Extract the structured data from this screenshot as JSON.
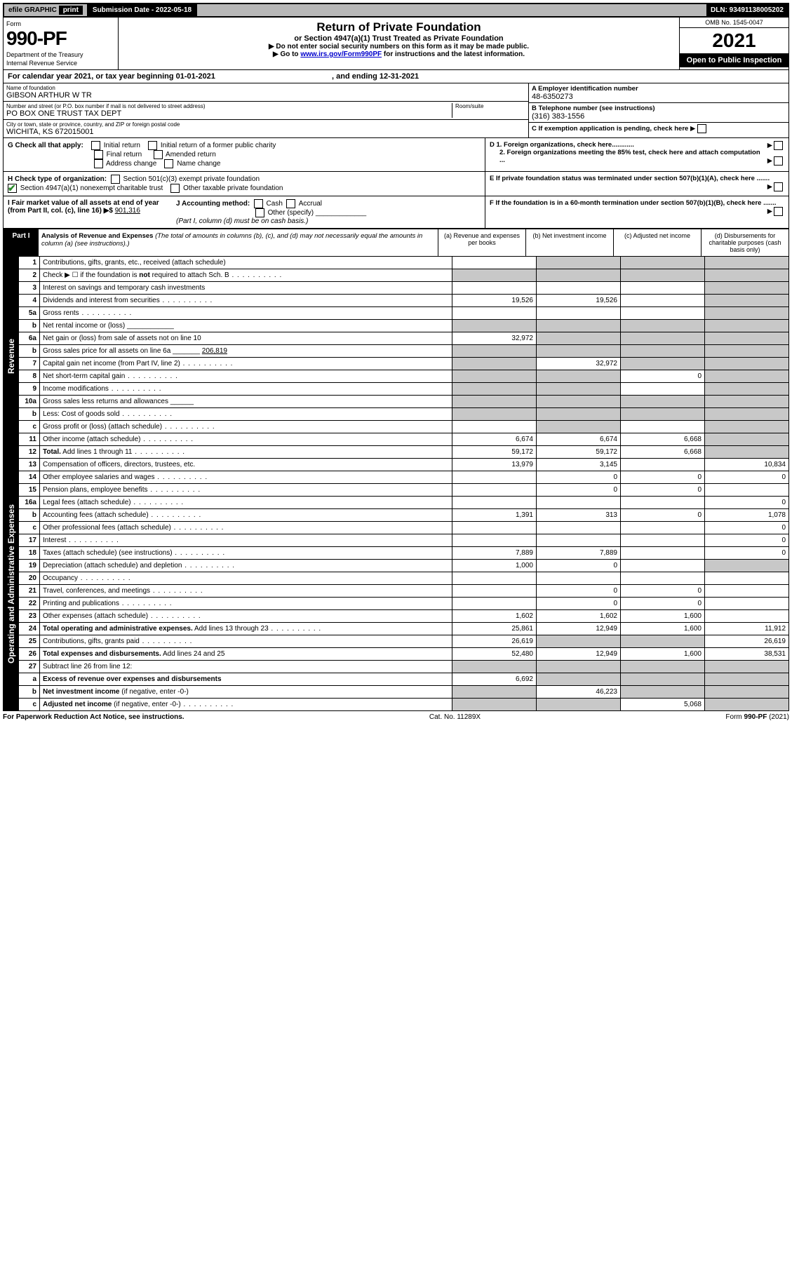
{
  "header": {
    "efile_label": "efile GRAPHIC",
    "print_label": "print",
    "submission_label": "Submission Date - 2022-05-18",
    "dln_label": "DLN: 93491138005202",
    "form_word": "Form",
    "form_number": "990-PF",
    "dept": "Department of the Treasury",
    "irs": "Internal Revenue Service",
    "title": "Return of Private Foundation",
    "subtitle": "or Section 4947(a)(1) Trust Treated as Private Foundation",
    "note1": "▶ Do not enter social security numbers on this form as it may be made public.",
    "note2_pre": "▶ Go to ",
    "note2_link": "www.irs.gov/Form990PF",
    "note2_post": " for instructions and the latest information.",
    "omb": "OMB No. 1545-0047",
    "year": "2021",
    "open": "Open to Public Inspection",
    "cal_year": "For calendar year 2021, or tax year beginning 01-01-2021",
    "cal_end": ", and ending 12-31-2021"
  },
  "entity": {
    "name_label": "Name of foundation",
    "name": "GIBSON ARTHUR W TR",
    "addr_label": "Number and street (or P.O. box number if mail is not delivered to street address)",
    "addr": "PO BOX ONE TRUST TAX DEPT",
    "room_label": "Room/suite",
    "city_label": "City or town, state or province, country, and ZIP or foreign postal code",
    "city": "WICHITA, KS  672015001",
    "A_label": "A Employer identification number",
    "A_val": "48-6350273",
    "B_label": "B Telephone number (see instructions)",
    "B_val": "(316) 383-1556",
    "C_label": "C If exemption application is pending, check here",
    "D1_label": "D 1. Foreign organizations, check here............",
    "D2_label": "2. Foreign organizations meeting the 85% test, check here and attach computation ...",
    "E_label": "E  If private foundation status was terminated under section 507(b)(1)(A), check here .......",
    "F_label": "F  If the foundation is in a 60-month termination under section 507(b)(1)(B), check here .......",
    "G_label": "G Check all that apply:",
    "G_opts": [
      "Initial return",
      "Initial return of a former public charity",
      "Final return",
      "Amended return",
      "Address change",
      "Name change"
    ],
    "H_label": "H Check type of organization:",
    "H_501": "Section 501(c)(3) exempt private foundation",
    "H_4947": "Section 4947(a)(1) nonexempt charitable trust",
    "H_other": "Other taxable private foundation",
    "I_label": "I Fair market value of all assets at end of year (from Part II, col. (c), line 16) ▶$",
    "I_val": "901,316",
    "J_label": "J Accounting method:",
    "J_cash": "Cash",
    "J_accrual": "Accrual",
    "J_other": "Other (specify)",
    "J_note": "(Part I, column (d) must be on cash basis.)"
  },
  "part1": {
    "label": "Part I",
    "title": "Analysis of Revenue and Expenses",
    "title_note": "(The total of amounts in columns (b), (c), and (d) may not necessarily equal the amounts in column (a) (see instructions).)",
    "cols": {
      "a": "(a)  Revenue and expenses per books",
      "b": "(b)  Net investment income",
      "c": "(c)  Adjusted net income",
      "d": "(d)  Disbursements for charitable purposes (cash basis only)"
    },
    "side_rev": "Revenue",
    "side_exp": "Operating and Administrative Expenses",
    "rows": [
      {
        "n": "1",
        "t": "Contributions, gifts, grants, etc., received (attach schedule)",
        "a": "",
        "b": "s",
        "c": "s",
        "d": "s"
      },
      {
        "n": "2",
        "t": "Check ▶ ☐ if the foundation is <b>not</b> required to attach Sch. B",
        "dots": 1,
        "a": "s",
        "b": "s",
        "c": "s",
        "d": "s"
      },
      {
        "n": "3",
        "t": "Interest on savings and temporary cash investments",
        "a": "",
        "b": "",
        "c": "",
        "d": "s"
      },
      {
        "n": "4",
        "t": "Dividends and interest from securities",
        "dots": 1,
        "a": "19,526",
        "b": "19,526",
        "c": "",
        "d": "s"
      },
      {
        "n": "5a",
        "t": "Gross rents",
        "dots": 1,
        "a": "",
        "b": "",
        "c": "",
        "d": "s"
      },
      {
        "n": "b",
        "t": "Net rental income or (loss) ____________",
        "a": "s",
        "b": "s",
        "c": "s",
        "d": "s"
      },
      {
        "n": "6a",
        "t": "Net gain or (loss) from sale of assets not on line 10",
        "a": "32,972",
        "b": "s",
        "c": "s",
        "d": "s"
      },
      {
        "n": "b",
        "t": "Gross sales price for all assets on line 6a _______ <u>206,819</u>",
        "a": "s",
        "b": "s",
        "c": "s",
        "d": "s"
      },
      {
        "n": "7",
        "t": "Capital gain net income (from Part IV, line 2)",
        "dots": 1,
        "a": "s",
        "b": "32,972",
        "c": "s",
        "d": "s"
      },
      {
        "n": "8",
        "t": "Net short-term capital gain",
        "dots": 1,
        "a": "s",
        "b": "s",
        "c": "0",
        "d": "s"
      },
      {
        "n": "9",
        "t": "Income modifications",
        "dots": 1,
        "a": "s",
        "b": "s",
        "c": "",
        "d": "s"
      },
      {
        "n": "10a",
        "t": "Gross sales less returns and allowances  ______",
        "a": "s",
        "b": "s",
        "c": "s",
        "d": "s"
      },
      {
        "n": "b",
        "t": "Less: Cost of goods sold",
        "dots": 1,
        "a": "s",
        "b": "s",
        "c": "s",
        "d": "s"
      },
      {
        "n": "c",
        "t": "Gross profit or (loss) (attach schedule)",
        "dots": 1,
        "a": "",
        "b": "s",
        "c": "",
        "d": "s"
      },
      {
        "n": "11",
        "t": "Other income (attach schedule)",
        "dots": 1,
        "a": "6,674",
        "b": "6,674",
        "c": "6,668",
        "d": "s"
      },
      {
        "n": "12",
        "t": "<b>Total.</b> Add lines 1 through 11",
        "dots": 1,
        "a": "59,172",
        "b": "59,172",
        "c": "6,668",
        "d": "s"
      },
      {
        "n": "13",
        "t": "Compensation of officers, directors, trustees, etc.",
        "a": "13,979",
        "b": "3,145",
        "c": "",
        "d": "10,834"
      },
      {
        "n": "14",
        "t": "Other employee salaries and wages",
        "dots": 1,
        "a": "",
        "b": "0",
        "c": "0",
        "d": "0"
      },
      {
        "n": "15",
        "t": "Pension plans, employee benefits",
        "dots": 1,
        "a": "",
        "b": "0",
        "c": "0",
        "d": ""
      },
      {
        "n": "16a",
        "t": "Legal fees (attach schedule)",
        "dots": 1,
        "a": "",
        "b": "",
        "c": "",
        "d": "0"
      },
      {
        "n": "b",
        "t": "Accounting fees (attach schedule)",
        "dots": 1,
        "a": "1,391",
        "b": "313",
        "c": "0",
        "d": "1,078"
      },
      {
        "n": "c",
        "t": "Other professional fees (attach schedule)",
        "dots": 1,
        "a": "",
        "b": "",
        "c": "",
        "d": "0"
      },
      {
        "n": "17",
        "t": "Interest",
        "dots": 1,
        "a": "",
        "b": "",
        "c": "",
        "d": "0"
      },
      {
        "n": "18",
        "t": "Taxes (attach schedule) (see instructions)",
        "dots": 1,
        "a": "7,889",
        "b": "7,889",
        "c": "",
        "d": "0"
      },
      {
        "n": "19",
        "t": "Depreciation (attach schedule) and depletion",
        "dots": 1,
        "a": "1,000",
        "b": "0",
        "c": "",
        "d": "s"
      },
      {
        "n": "20",
        "t": "Occupancy",
        "dots": 1,
        "a": "",
        "b": "",
        "c": "",
        "d": ""
      },
      {
        "n": "21",
        "t": "Travel, conferences, and meetings",
        "dots": 1,
        "a": "",
        "b": "0",
        "c": "0",
        "d": ""
      },
      {
        "n": "22",
        "t": "Printing and publications",
        "dots": 1,
        "a": "",
        "b": "0",
        "c": "0",
        "d": ""
      },
      {
        "n": "23",
        "t": "Other expenses (attach schedule)",
        "dots": 1,
        "a": "1,602",
        "b": "1,602",
        "c": "1,600",
        "d": ""
      },
      {
        "n": "24",
        "t": "<b>Total operating and administrative expenses.</b> Add lines 13 through 23",
        "dots": 1,
        "a": "25,861",
        "b": "12,949",
        "c": "1,600",
        "d": "11,912"
      },
      {
        "n": "25",
        "t": "Contributions, gifts, grants paid",
        "dots": 1,
        "a": "26,619",
        "b": "s",
        "c": "s",
        "d": "26,619"
      },
      {
        "n": "26",
        "t": "<b>Total expenses and disbursements.</b> Add lines 24 and 25",
        "a": "52,480",
        "b": "12,949",
        "c": "1,600",
        "d": "38,531"
      },
      {
        "n": "27",
        "t": "Subtract line 26 from line 12:",
        "a": "s",
        "b": "s",
        "c": "s",
        "d": "s"
      },
      {
        "n": "a",
        "t": "<b>Excess of revenue over expenses and disbursements</b>",
        "a": "6,692",
        "b": "s",
        "c": "s",
        "d": "s"
      },
      {
        "n": "b",
        "t": "<b>Net investment income</b> (if negative, enter -0-)",
        "a": "s",
        "b": "46,223",
        "c": "s",
        "d": "s"
      },
      {
        "n": "c",
        "t": "<b>Adjusted net income</b> (if negative, enter -0-)",
        "dots": 1,
        "a": "s",
        "b": "s",
        "c": "5,068",
        "d": "s"
      }
    ]
  },
  "footer": {
    "left": "For Paperwork Reduction Act Notice, see instructions.",
    "mid": "Cat. No. 11289X",
    "right": "Form 990-PF (2021)"
  },
  "style": {
    "shade_color": "#c8c8c8",
    "black": "#000000",
    "link_color": "#0000cc",
    "check_color": "#2a8a2a"
  }
}
